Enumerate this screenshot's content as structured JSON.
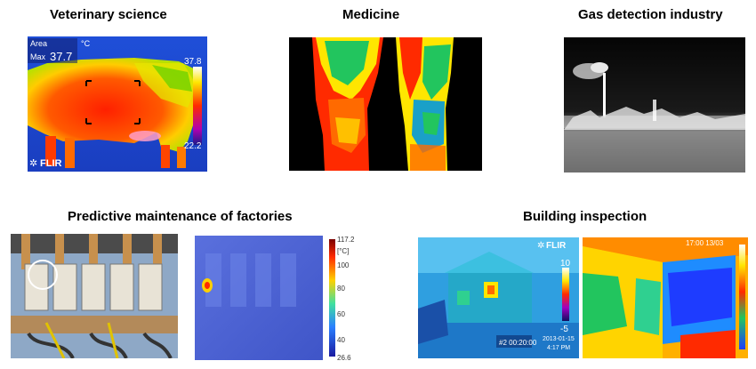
{
  "sections": {
    "vet": {
      "title": "Veterinary science",
      "overlay": {
        "area_label": "Area",
        "max_label": "Max",
        "max_value": "37.7",
        "unit": "°C",
        "scale_max": "37.8",
        "scale_min": "22.2",
        "brand": "FLIR"
      }
    },
    "medicine": {
      "title": "Medicine"
    },
    "gas": {
      "title": "Gas detection industry"
    },
    "maintenance": {
      "title": "Predictive maintenance of factories",
      "colorbar": {
        "ticks": [
          "117.2",
          "[°C]",
          "100",
          "80",
          "60",
          "40",
          "26.6"
        ]
      }
    },
    "building": {
      "title": "Building inspection",
      "left": {
        "brand": "FLIR",
        "scale_max": "10",
        "scale_min": "-5",
        "recording": "#2 00:20:00",
        "date": "2013-01-15",
        "time": "4:17 PM"
      },
      "right": {
        "timestamp": "17:00 13/03"
      }
    }
  },
  "colors": {
    "hot": "#ff1a00",
    "warm": "#ffe600",
    "mid": "#22c55e",
    "cold": "#1e3cff"
  }
}
